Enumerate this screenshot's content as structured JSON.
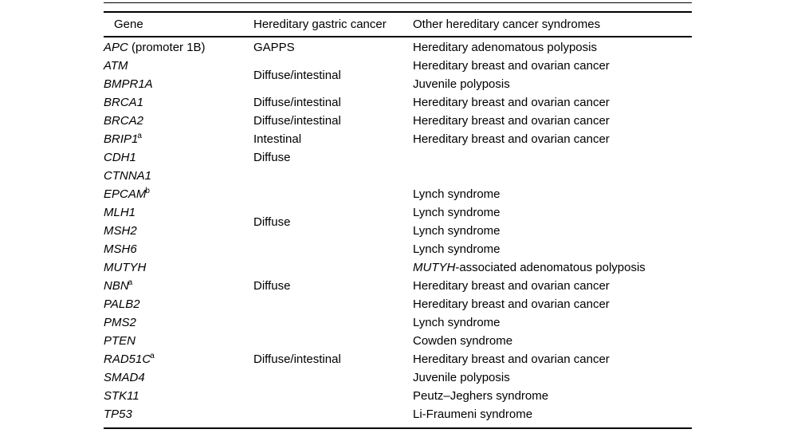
{
  "colors": {
    "background": "#ffffff",
    "text": "#000000",
    "rule": "#000000"
  },
  "table": {
    "columns": [
      "Gene",
      "Hereditary gastric cancer",
      "Other hereditary cancer syndromes"
    ],
    "rows": [
      {
        "gene": "APC",
        "sup": "",
        "gene_note": " (promoter 1B)",
        "hgc": "GAPPS",
        "hgc_span": 1,
        "other_italic": "",
        "other": "Hereditary adenomatous polyposis"
      },
      {
        "gene": "ATM",
        "sup": "",
        "gene_note": "",
        "hgc": "Diffuse/intestinal",
        "hgc_span": 2,
        "other_italic": "",
        "other": "Hereditary breast and ovarian cancer"
      },
      {
        "gene": "BMPR1A",
        "sup": "",
        "gene_note": "",
        "hgc": null,
        "other_italic": "",
        "other": "Juvenile polyposis"
      },
      {
        "gene": "BRCA1",
        "sup": "",
        "gene_note": "",
        "hgc": "Diffuse/intestinal",
        "hgc_span": 1,
        "other_italic": "",
        "other": "Hereditary breast and ovarian cancer"
      },
      {
        "gene": "BRCA2",
        "sup": "",
        "gene_note": "",
        "hgc": "Diffuse/intestinal",
        "hgc_span": 1,
        "other_italic": "",
        "other": "Hereditary breast and ovarian cancer"
      },
      {
        "gene": "BRIP1",
        "sup": "a",
        "gene_note": "",
        "hgc": "Intestinal",
        "hgc_span": 1,
        "other_italic": "",
        "other": "Hereditary breast and ovarian cancer"
      },
      {
        "gene": "CDH1",
        "sup": "",
        "gene_note": "",
        "hgc": "Diffuse",
        "hgc_span": 1,
        "other_italic": "",
        "other": ""
      },
      {
        "gene": "CTNNA1",
        "sup": "",
        "gene_note": "",
        "hgc": "",
        "hgc_span": 1,
        "other_italic": "",
        "other": ""
      },
      {
        "gene": "EPCAM",
        "sup": "b",
        "gene_note": "",
        "hgc": "Diffuse",
        "hgc_span": 4,
        "other_italic": "",
        "other": "Lynch syndrome"
      },
      {
        "gene": "MLH1",
        "sup": "",
        "gene_note": "",
        "hgc": null,
        "other_italic": "",
        "other": "Lynch syndrome"
      },
      {
        "gene": "MSH2",
        "sup": "",
        "gene_note": "",
        "hgc": null,
        "other_italic": "",
        "other": "Lynch syndrome"
      },
      {
        "gene": "MSH6",
        "sup": "",
        "gene_note": "",
        "hgc": null,
        "other_italic": "",
        "other": "Lynch syndrome"
      },
      {
        "gene": "MUTYH",
        "sup": "",
        "gene_note": "",
        "hgc": "",
        "hgc_span": 1,
        "other_italic": "MUTYH",
        "other": "-associated adenomatous polyposis"
      },
      {
        "gene": "NBN",
        "sup": "a",
        "gene_note": "",
        "hgc": "Diffuse",
        "hgc_span": 1,
        "other_italic": "",
        "other": "Hereditary breast and ovarian cancer"
      },
      {
        "gene": "PALB2",
        "sup": "",
        "gene_note": "",
        "hgc": "",
        "hgc_span": 1,
        "other_italic": "",
        "other": "Hereditary breast and ovarian cancer"
      },
      {
        "gene": "PMS2",
        "sup": "",
        "gene_note": "",
        "hgc": "",
        "hgc_span": 1,
        "other_italic": "",
        "other": "Lynch syndrome"
      },
      {
        "gene": "PTEN",
        "sup": "",
        "gene_note": "",
        "hgc": "",
        "hgc_span": 1,
        "other_italic": "",
        "other": "Cowden syndrome"
      },
      {
        "gene": "RAD51C",
        "sup": "a",
        "gene_note": "",
        "hgc": "Diffuse/intestinal",
        "hgc_span": 1,
        "other_italic": "",
        "other": "Hereditary breast and ovarian cancer"
      },
      {
        "gene": "SMAD4",
        "sup": "",
        "gene_note": "",
        "hgc": "",
        "hgc_span": 1,
        "other_italic": "",
        "other": "Juvenile polyposis"
      },
      {
        "gene": "STK11",
        "sup": "",
        "gene_note": "",
        "hgc": "",
        "hgc_span": 1,
        "other_italic": "",
        "other": "Peutz–Jeghers syndrome"
      },
      {
        "gene": "TP53",
        "sup": "",
        "gene_note": "",
        "hgc": "",
        "hgc_span": 1,
        "other_italic": "",
        "other": "Li-Fraumeni syndrome"
      }
    ]
  }
}
